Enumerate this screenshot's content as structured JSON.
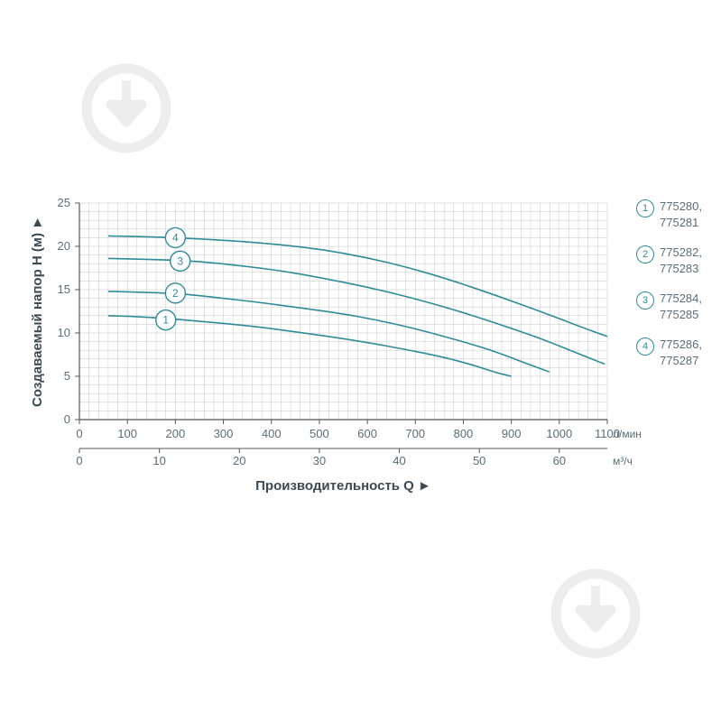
{
  "chart": {
    "type": "line",
    "y_axis": {
      "label": "Создаваемый напор H (м)",
      "min": 0,
      "max": 25,
      "tick_step": 5,
      "minor_step": 1,
      "ticks": [
        0,
        5,
        10,
        15,
        20,
        25
      ]
    },
    "x_axis_top": {
      "min": 0,
      "max": 1100,
      "tick_step": 100,
      "minor_step": 20,
      "ticks": [
        0,
        100,
        200,
        300,
        400,
        500,
        600,
        700,
        800,
        900,
        1000,
        1100
      ],
      "unit": "л/мин"
    },
    "x_axis_bottom": {
      "min": 0,
      "max": 66,
      "ticks": [
        0,
        10,
        20,
        30,
        40,
        50,
        60
      ],
      "unit": "м³/ч",
      "label": "Производительность Q"
    },
    "series_color": "#2e8b9b",
    "grid_color": "#c6c6c6",
    "axis_color": "#555555",
    "background_color": "#ffffff",
    "line_width": 1.6,
    "series": [
      {
        "id": 1,
        "badge_x": 180,
        "badge_y": 11.5,
        "points": [
          [
            60,
            12.0
          ],
          [
            120,
            11.9
          ],
          [
            200,
            11.6
          ],
          [
            280,
            11.2
          ],
          [
            360,
            10.8
          ],
          [
            440,
            10.2
          ],
          [
            520,
            9.6
          ],
          [
            600,
            8.9
          ],
          [
            680,
            8.1
          ],
          [
            760,
            7.2
          ],
          [
            820,
            6.3
          ],
          [
            870,
            5.4
          ],
          [
            900,
            5.0
          ]
        ]
      },
      {
        "id": 2,
        "badge_x": 200,
        "badge_y": 14.6,
        "points": [
          [
            60,
            14.8
          ],
          [
            140,
            14.7
          ],
          [
            220,
            14.5
          ],
          [
            300,
            14.0
          ],
          [
            380,
            13.5
          ],
          [
            460,
            12.9
          ],
          [
            540,
            12.3
          ],
          [
            620,
            11.5
          ],
          [
            700,
            10.5
          ],
          [
            780,
            9.3
          ],
          [
            860,
            8.0
          ],
          [
            930,
            6.5
          ],
          [
            980,
            5.5
          ]
        ]
      },
      {
        "id": 3,
        "badge_x": 210,
        "badge_y": 18.3,
        "points": [
          [
            60,
            18.6
          ],
          [
            150,
            18.5
          ],
          [
            240,
            18.3
          ],
          [
            330,
            17.8
          ],
          [
            420,
            17.2
          ],
          [
            510,
            16.3
          ],
          [
            600,
            15.3
          ],
          [
            690,
            14.1
          ],
          [
            780,
            12.7
          ],
          [
            870,
            11.1
          ],
          [
            960,
            9.4
          ],
          [
            1040,
            7.6
          ],
          [
            1095,
            6.4
          ]
        ]
      },
      {
        "id": 4,
        "badge_x": 200,
        "badge_y": 21.0,
        "points": [
          [
            60,
            21.2
          ],
          [
            150,
            21.1
          ],
          [
            240,
            20.9
          ],
          [
            330,
            20.6
          ],
          [
            420,
            20.2
          ],
          [
            510,
            19.6
          ],
          [
            600,
            18.7
          ],
          [
            690,
            17.5
          ],
          [
            780,
            16.0
          ],
          [
            870,
            14.3
          ],
          [
            960,
            12.5
          ],
          [
            1040,
            10.8
          ],
          [
            1100,
            9.6
          ]
        ]
      }
    ]
  },
  "legend": {
    "items": [
      {
        "num": 1,
        "text": "775280,\n775281"
      },
      {
        "num": 2,
        "text": "775282,\n775283"
      },
      {
        "num": 3,
        "text": "775284,\n775285"
      },
      {
        "num": 4,
        "text": "775286,\n775287"
      }
    ]
  },
  "watermark_color": "#bfbfbf"
}
